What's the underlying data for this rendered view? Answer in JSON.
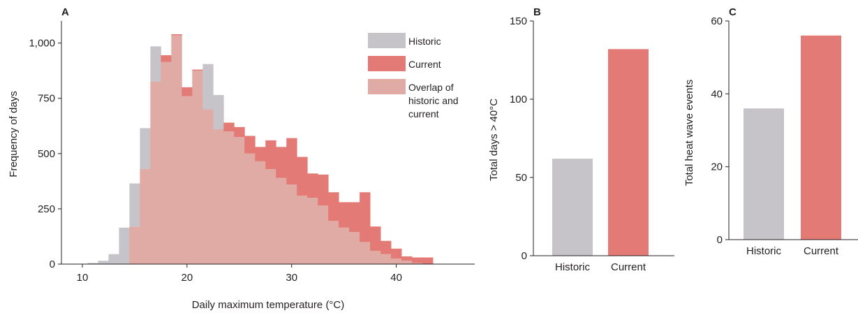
{
  "colors": {
    "historic": "#c6c4c9",
    "current": "#e37a75",
    "overlap": "#e0aaa5",
    "axis": "#231f20"
  },
  "chart_data": [
    {
      "panel": "A",
      "type": "histogram",
      "xlabel": "Daily maximum temperature (°C)",
      "ylabel": "Frequency of days",
      "xlim": [
        8,
        47.5
      ],
      "ylim": [
        0,
        1100
      ],
      "xticks": [
        10,
        20,
        30,
        40
      ],
      "yticks": [
        0,
        250,
        500,
        750,
        1000
      ],
      "ytick_labels": [
        "0",
        "250",
        "500",
        "750",
        "1,000"
      ],
      "bin_edges": [
        10.5,
        11.5,
        12.5,
        13.5,
        14.5,
        15.5,
        16.5,
        17.5,
        18.5,
        19.5,
        20.5,
        21.5,
        22.5,
        23.5,
        24.5,
        25.5,
        26.5,
        27.5,
        28.5,
        29.5,
        30.5,
        31.5,
        32.5,
        33.5,
        34.5,
        35.5,
        36.5,
        37.5,
        38.5,
        39.5,
        40.5,
        41.5,
        42.5,
        43.5
      ],
      "series": [
        {
          "name": "Historic",
          "values": [
            5,
            15,
            45,
            165,
            365,
            615,
            985,
            915,
            1035,
            760,
            875,
            905,
            765,
            600,
            575,
            500,
            465,
            430,
            390,
            360,
            310,
            300,
            265,
            195,
            165,
            145,
            100,
            60,
            45,
            25,
            15,
            5,
            0
          ]
        },
        {
          "name": "Current",
          "values": [
            0,
            0,
            0,
            0,
            170,
            430,
            825,
            945,
            1040,
            800,
            880,
            700,
            610,
            640,
            620,
            580,
            530,
            560,
            530,
            570,
            485,
            410,
            405,
            325,
            280,
            280,
            325,
            170,
            105,
            70,
            35,
            30,
            30
          ]
        }
      ],
      "legend": {
        "position": "top-right",
        "entries": [
          "Historic",
          "Current",
          "Overlap of historic and current"
        ],
        "overlap_lines": [
          "Overlap of",
          "historic and",
          "current"
        ]
      }
    },
    {
      "panel": "B",
      "type": "bar",
      "categories": [
        "Historic",
        "Current"
      ],
      "values": [
        62,
        132
      ],
      "ylabel": "Total days > 40°C",
      "ylim": [
        0,
        150
      ],
      "yticks": [
        0,
        50,
        100,
        150
      ]
    },
    {
      "panel": "C",
      "type": "bar",
      "categories": [
        "Historic",
        "Current"
      ],
      "values": [
        36,
        56
      ],
      "ylabel": "Total heat wave events",
      "ylim": [
        0,
        60
      ],
      "yticks": [
        0,
        20,
        40,
        60
      ]
    }
  ]
}
